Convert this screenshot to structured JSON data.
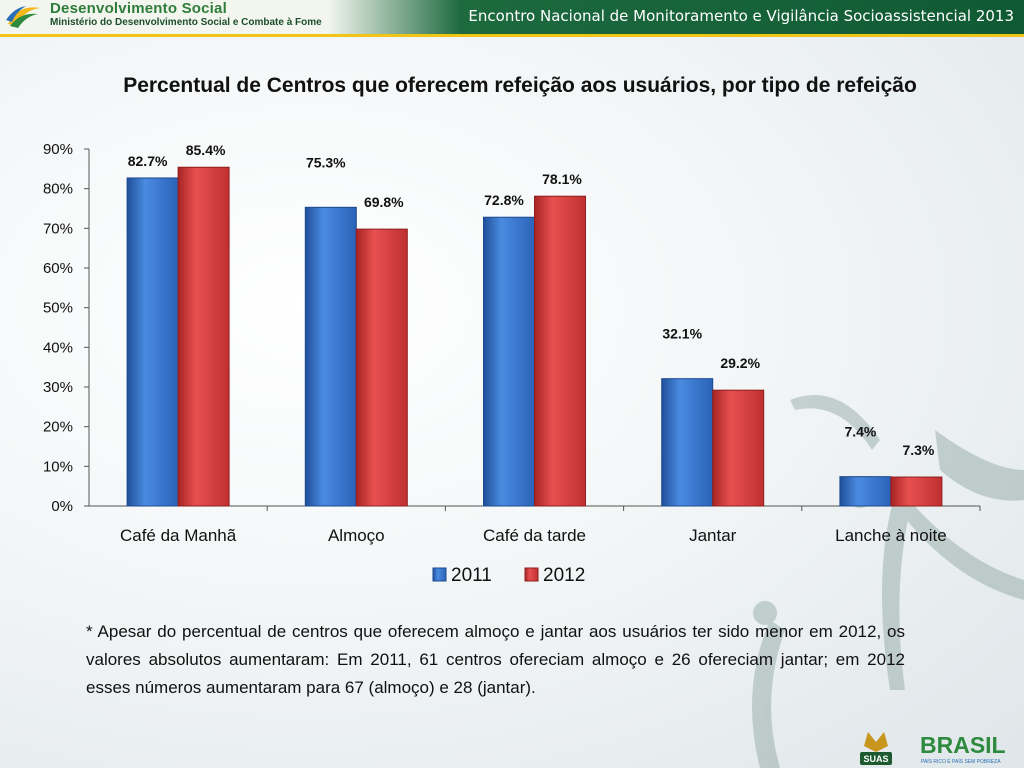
{
  "header": {
    "org_title": "Desenvolvimento Social",
    "org_subtitle": "Ministério do Desenvolvimento Social e Combate à Fome",
    "event_title": "Encontro Nacional de Monitoramento e Vigilância Socioassistencial 2013"
  },
  "chart_data": {
    "type": "bar",
    "title": "Percentual de Centros que oferecem refeição aos usuários, por tipo de refeição",
    "categories": [
      "Café da Manhã",
      "Almoço",
      "Café da tarde",
      "Jantar",
      "Lanche à noite"
    ],
    "series": [
      {
        "name": "2011",
        "values": [
          82.7,
          75.3,
          72.8,
          32.1,
          7.4
        ],
        "labels": [
          "82.7%",
          "75.3%",
          "72.8%",
          "32.1%",
          "7.4%"
        ],
        "color": "#2f6fc6"
      },
      {
        "name": "2012",
        "values": [
          85.4,
          69.8,
          78.1,
          29.2,
          7.3
        ],
        "labels": [
          "85.4%",
          "69.8%",
          "78.1%",
          "29.2%",
          "7.3%"
        ],
        "color": "#d63a3a"
      }
    ],
    "ylim": [
      0,
      90
    ],
    "yticks": [
      0,
      10,
      20,
      30,
      40,
      50,
      60,
      70,
      80,
      90
    ],
    "ytick_labels": [
      "0%",
      "10%",
      "20%",
      "30%",
      "40%",
      "50%",
      "60%",
      "70%",
      "80%",
      "90%"
    ],
    "xlabel": "",
    "ylabel": "",
    "legend_position": "bottom"
  },
  "note": "* Apesar do percentual de centros que oferecem almoço e jantar aos usuários ter sido menor em 2012, os valores absolutos aumentaram: Em 2011, 61 centros ofereciam almoço e 26 ofereciam jantar; em 2012 esses números aumentaram para 67 (almoço) e 28 (jantar).",
  "footer": {
    "logo_left": "SUAS",
    "logo_right": "BRASIL",
    "logo_right_tagline": "PAÍS RICO É PAÍS SEM POBREZA"
  },
  "colors": {
    "header_green": "#0f5a33",
    "header_yellow": "#f2c417",
    "series_2011": "#2f6fc6",
    "series_2012": "#d63a3a"
  }
}
